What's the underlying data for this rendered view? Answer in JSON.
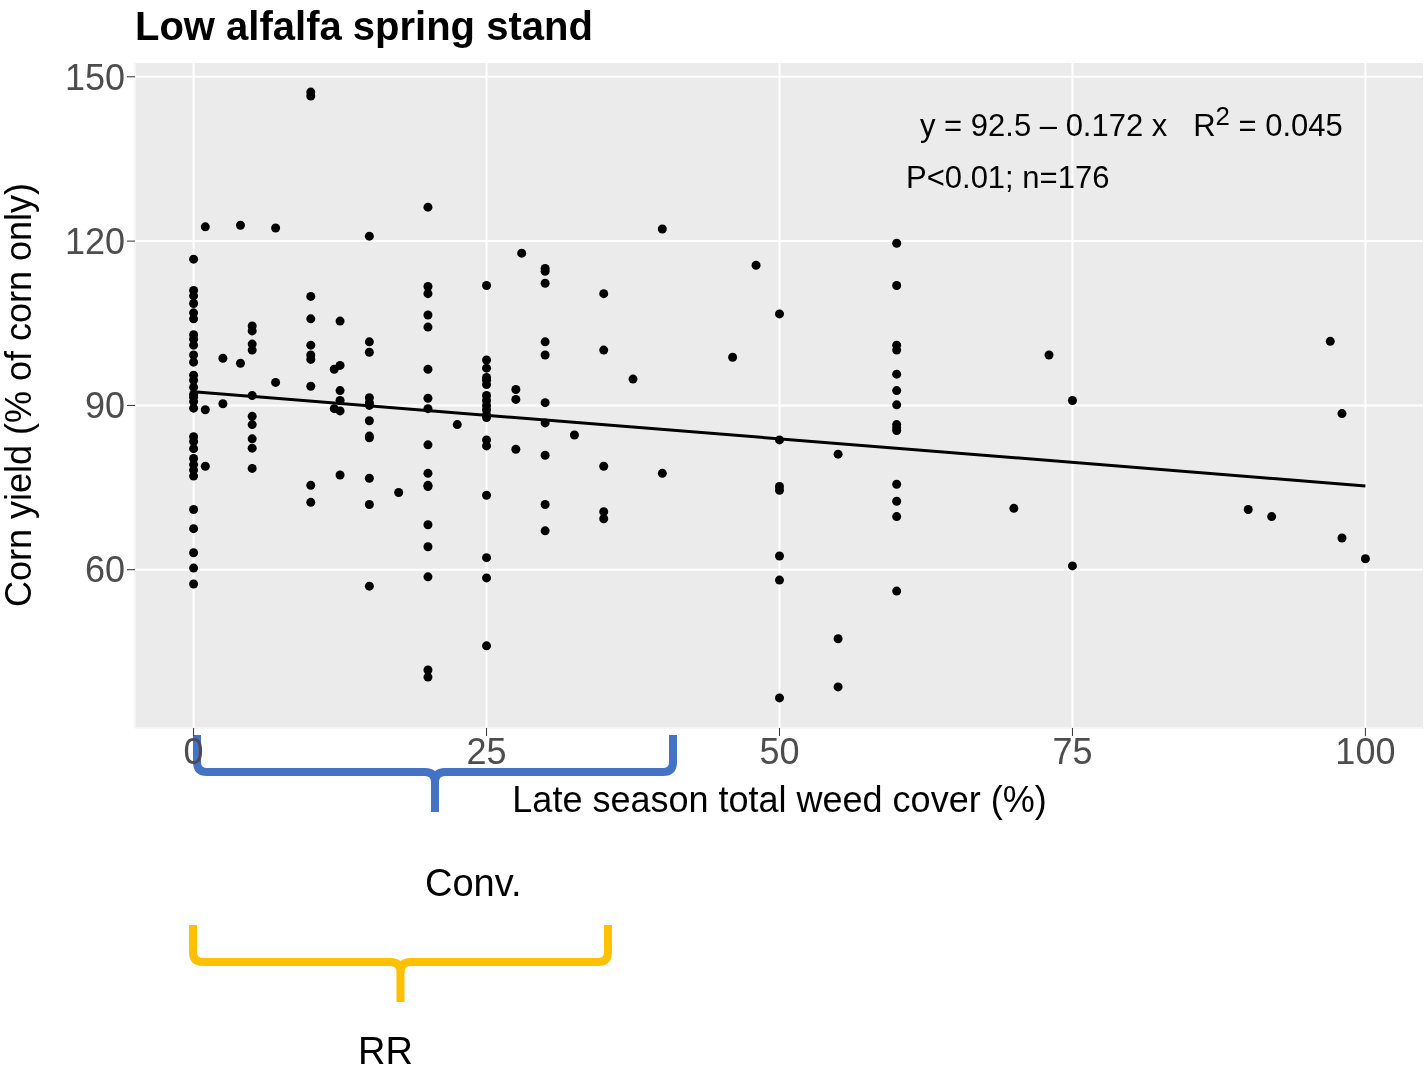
{
  "chart_data": {
    "type": "scatter",
    "title": "Low alfalfa spring stand",
    "xlabel": "Late season total weed cover (%)",
    "ylabel": "Corn yield (% of corn only)",
    "annotations": [
      "y = 92.5 – 0.172 x   R$^{2}$ = 0.045",
      "P<0.01; n=176",
      "Conv.",
      "RR"
    ],
    "xlim": [
      -5,
      105
    ],
    "ylim": [
      31.1,
      152.7
    ],
    "xticks": [
      0,
      25,
      50,
      75,
      100
    ],
    "yticks": [
      60,
      90,
      120,
      150
    ],
    "grid": true,
    "series": [
      {
        "marker": "circle",
        "color": "#000000",
        "x": [
          0,
          0,
          0,
          0,
          0,
          0,
          0,
          0,
          0,
          0,
          0,
          0,
          0,
          0,
          0,
          0,
          0,
          0,
          0,
          0,
          0,
          0,
          0,
          0,
          0,
          0,
          0,
          0,
          0,
          0,
          1,
          1,
          1,
          2.5,
          2.5,
          4,
          4,
          5,
          5,
          5,
          5,
          5,
          5,
          5,
          5,
          5,
          5,
          7,
          7,
          10,
          10,
          10,
          10,
          10,
          10,
          10,
          10,
          10,
          10,
          12,
          12,
          12.5,
          12.5,
          12.5,
          12.5,
          12.5,
          12.5,
          15,
          15,
          15,
          15,
          15,
          15,
          15,
          15,
          15,
          15,
          15,
          15,
          17.5,
          20,
          20,
          20,
          20,
          20,
          20,
          20,
          20,
          20,
          20,
          20,
          20,
          20,
          20,
          20,
          20,
          20,
          22.5,
          25,
          25,
          25,
          25,
          25,
          25,
          25,
          25,
          25,
          25,
          25,
          25,
          25,
          25,
          25,
          25,
          25,
          25,
          27.5,
          27.5,
          27.5,
          28,
          30,
          30,
          30,
          30,
          30,
          30,
          30,
          30,
          30,
          30,
          32.5,
          35,
          35,
          35,
          35,
          35,
          37.5,
          40,
          40,
          46,
          48,
          50,
          50,
          50,
          50,
          50,
          50,
          50,
          55,
          55,
          55,
          60,
          60,
          60,
          60,
          60,
          60,
          60,
          60,
          60,
          60,
          60,
          60,
          60,
          60,
          70,
          73,
          75,
          75,
          90,
          92,
          97,
          98,
          98,
          100
        ],
        "values": [
          116.7,
          111,
          110,
          108.6,
          106.9,
          105.8,
          102.9,
          102.1,
          101,
          99.2,
          97.9,
          95.5,
          94.6,
          93.3,
          92,
          91.5,
          90.7,
          89.5,
          84.3,
          83.4,
          82.1,
          80.3,
          79.2,
          78.2,
          77.1,
          71,
          67.5,
          63.1,
          60.3,
          57.4,
          122.6,
          89.2,
          78.9,
          98.6,
          90.3,
          122.9,
          97.7,
          104.5,
          103.6,
          101.2,
          100.1,
          91.8,
          88,
          86.5,
          83.9,
          82.2,
          78.5,
          122.4,
          94.2,
          147.2,
          146.5,
          109.9,
          105.8,
          101,
          99.2,
          98.4,
          93.5,
          75.4,
          72.3,
          96.6,
          89.4,
          105.4,
          97.3,
          92.7,
          90.9,
          89,
          77.3,
          120.9,
          101.6,
          99.7,
          91.4,
          90.5,
          90,
          87.2,
          84.4,
          84.1,
          76.7,
          71.9,
          57,
          74.1,
          126.2,
          111.7,
          110.4,
          106.5,
          104.3,
          96.6,
          91.3,
          89.4,
          82.8,
          77.6,
          75.4,
          75.2,
          68.2,
          64.2,
          58.7,
          41.7,
          40.4,
          86.5,
          111.9,
          98.3,
          96.8,
          95.1,
          94.6,
          93.8,
          91.8,
          90.9,
          90,
          89.2,
          88.3,
          87.8,
          83.7,
          82.6,
          73.6,
          62.2,
          58.5,
          46.1,
          92.9,
          91.1,
          82,
          117.8,
          115,
          114.5,
          112.3,
          101.6,
          99.2,
          90.5,
          86.8,
          80.9,
          71.9,
          67.1,
          84.6,
          110.4,
          100.1,
          78.9,
          70.6,
          69.3,
          94.8,
          122.2,
          77.6,
          98.8,
          115.6,
          106.7,
          83.7,
          75.2,
          74.5,
          62.5,
          58.1,
          36.6,
          81.1,
          47.4,
          38.6,
          119.6,
          111.9,
          101,
          100.1,
          95.7,
          92.7,
          90.1,
          86.5,
          85.9,
          85.4,
          75.6,
          72.5,
          69.7,
          56.1,
          71.2,
          99.2,
          90.9,
          60.7,
          71,
          69.7,
          101.7,
          88.5,
          65.8,
          62
        ]
      },
      {
        "type": "line",
        "color": "#000000",
        "x": [
          0,
          100
        ],
        "values": [
          92.5,
          75.3
        ]
      }
    ]
  }
}
